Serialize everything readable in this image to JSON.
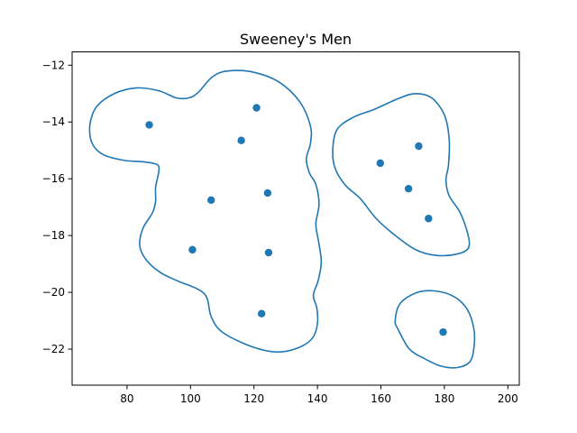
{
  "chart_data": {
    "type": "scatter",
    "title": "Sweeney's Men",
    "xlabel": "",
    "ylabel": "",
    "xlim": [
      62.7,
      203.6
    ],
    "ylim": [
      -23.27,
      -11.53
    ],
    "x_ticks": [
      80,
      100,
      120,
      140,
      160,
      180,
      200
    ],
    "y_ticks": [
      -12,
      -14,
      -16,
      -18,
      -20,
      -22
    ],
    "grid": false,
    "colors": {
      "points": "#1f77b4",
      "contours": "#1f77b4",
      "axes": "#000000"
    },
    "points": [
      {
        "x": 87.0,
        "y": -14.1
      },
      {
        "x": 120.8,
        "y": -13.5
      },
      {
        "x": 116.0,
        "y": -14.65
      },
      {
        "x": 106.5,
        "y": -16.75
      },
      {
        "x": 124.3,
        "y": -16.5
      },
      {
        "x": 100.6,
        "y": -18.5
      },
      {
        "x": 124.6,
        "y": -18.6
      },
      {
        "x": 122.4,
        "y": -20.75
      },
      {
        "x": 159.8,
        "y": -15.45
      },
      {
        "x": 171.9,
        "y": -14.85
      },
      {
        "x": 168.7,
        "y": -16.35
      },
      {
        "x": 175.0,
        "y": -17.4
      },
      {
        "x": 179.6,
        "y": -21.4
      }
    ],
    "regions": [
      {
        "name": "",
        "outline": [
          [
            68.3,
            -14.1
          ],
          [
            70.5,
            -13.45
          ],
          [
            76,
            -13.0
          ],
          [
            83,
            -12.8
          ],
          [
            90,
            -12.9
          ],
          [
            95.5,
            -13.15
          ],
          [
            99.5,
            -13.15
          ],
          [
            102.5,
            -12.95
          ],
          [
            107,
            -12.4
          ],
          [
            112,
            -12.2
          ],
          [
            120,
            -12.25
          ],
          [
            128,
            -12.6
          ],
          [
            134.5,
            -13.3
          ],
          [
            137.8,
            -14.15
          ],
          [
            137.8,
            -14.75
          ],
          [
            136.5,
            -15.3
          ],
          [
            137.5,
            -15.8
          ],
          [
            139.5,
            -16.2
          ],
          [
            140.5,
            -16.9
          ],
          [
            139.5,
            -17.6
          ],
          [
            140.5,
            -18.3
          ],
          [
            141.2,
            -18.95
          ],
          [
            140.2,
            -19.6
          ],
          [
            138.7,
            -20.1
          ],
          [
            139.8,
            -20.55
          ],
          [
            140,
            -21.1
          ],
          [
            138.5,
            -21.6
          ],
          [
            134,
            -21.95
          ],
          [
            127,
            -22.1
          ],
          [
            119,
            -21.9
          ],
          [
            110,
            -21.4
          ],
          [
            106.5,
            -20.85
          ],
          [
            105.2,
            -20.2
          ],
          [
            102.5,
            -19.9
          ],
          [
            96,
            -19.6
          ],
          [
            90.5,
            -19.3
          ],
          [
            86,
            -18.85
          ],
          [
            84,
            -18.35
          ],
          [
            85,
            -17.75
          ],
          [
            88,
            -17.2
          ],
          [
            89,
            -16.8
          ],
          [
            89,
            -16.3
          ],
          [
            90,
            -15.75
          ],
          [
            89.5,
            -15.5
          ],
          [
            85,
            -15.4
          ],
          [
            79,
            -15.35
          ],
          [
            72.5,
            -15.15
          ],
          [
            69,
            -14.75
          ]
        ]
      },
      {
        "name": "",
        "outline": [
          [
            144.8,
            -15.1
          ],
          [
            146,
            -14.3
          ],
          [
            151,
            -13.85
          ],
          [
            158,
            -13.55
          ],
          [
            166,
            -13.15
          ],
          [
            171,
            -13.0
          ],
          [
            176,
            -13.15
          ],
          [
            180,
            -13.75
          ],
          [
            181.5,
            -14.6
          ],
          [
            181.3,
            -15.5
          ],
          [
            180.5,
            -16.05
          ],
          [
            181.5,
            -16.6
          ],
          [
            185,
            -17.2
          ],
          [
            187.5,
            -18.0
          ],
          [
            187.5,
            -18.45
          ],
          [
            184,
            -18.65
          ],
          [
            177.5,
            -18.7
          ],
          [
            171,
            -18.5
          ],
          [
            164,
            -17.95
          ],
          [
            158.5,
            -17.4
          ],
          [
            153.5,
            -16.7
          ],
          [
            149,
            -16.25
          ],
          [
            145.8,
            -15.7
          ]
        ]
      },
      {
        "name": "",
        "outline": [
          [
            165.4,
            -21.3
          ],
          [
            164.5,
            -21.0
          ],
          [
            166,
            -20.4
          ],
          [
            171,
            -20.02
          ],
          [
            177,
            -19.95
          ],
          [
            183,
            -20.15
          ],
          [
            187.2,
            -20.6
          ],
          [
            189.3,
            -21.3
          ],
          [
            189.3,
            -21.95
          ],
          [
            188,
            -22.45
          ],
          [
            184,
            -22.65
          ],
          [
            179,
            -22.6
          ],
          [
            174,
            -22.35
          ],
          [
            169,
            -22.0
          ]
        ]
      }
    ]
  }
}
